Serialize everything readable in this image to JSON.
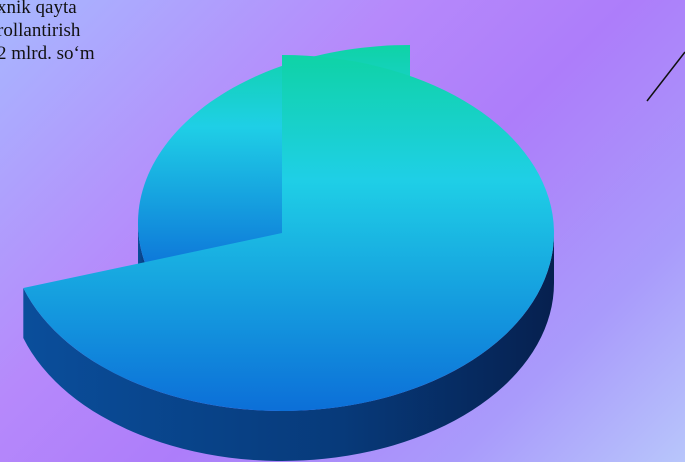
{
  "chart_data": {
    "type": "pie",
    "style": "3d-exploded",
    "slices": [
      {
        "label_lines": [
          "xnik qayta",
          "rollantirish",
          "2 mlrd. so‘m"
        ],
        "value": 70,
        "exploded": false
      },
      {
        "label_lines": [],
        "value": 30,
        "exploded": true
      }
    ],
    "colors": {
      "top_light": "#0fd3a6",
      "top_mid": "#1fcfe6",
      "top_dark": "#0c6fd8",
      "side_light": "#0a4e9b",
      "side_dark": "#06204f",
      "cut_face": "#045a45",
      "leader_line": "#111111"
    },
    "legend": "none",
    "grid": false
  }
}
